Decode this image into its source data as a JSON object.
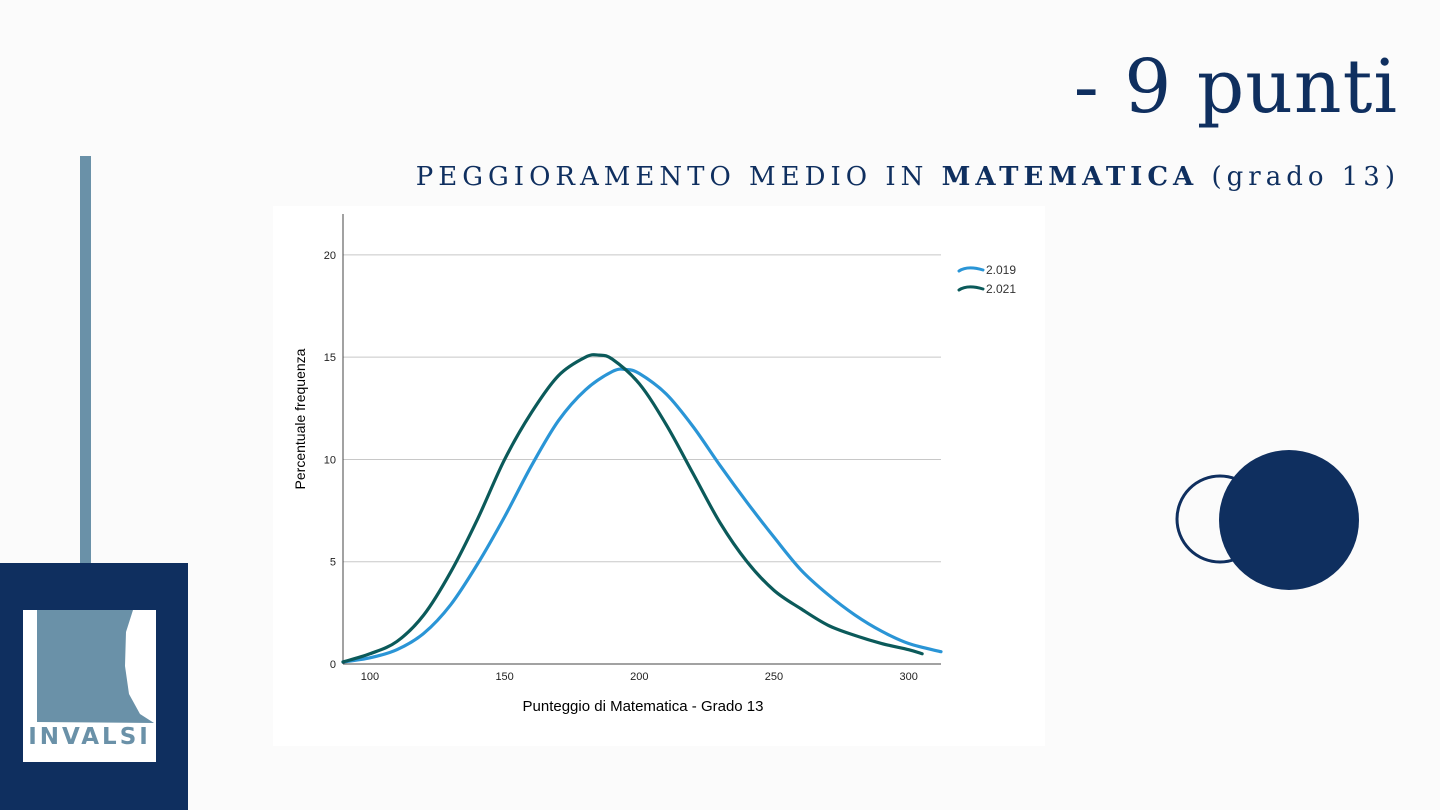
{
  "slide": {
    "headline": "- 9 punti",
    "subtitle_prefix": "PEGGIORAMENTO MEDIO IN ",
    "subtitle_bold": "MATEMATICA",
    "subtitle_suffix": " (grado 13)"
  },
  "logo": {
    "text": "INVALSI"
  },
  "colors": {
    "navy": "#0f2f5f",
    "steel_blue": "#6a91a8",
    "series_2019": "#2a95d6",
    "series_2021": "#0b5a5a"
  },
  "chart_data": {
    "type": "line",
    "title": "",
    "xlabel": "Punteggio di Matematica - Grado 13",
    "ylabel": "Percentuale frequenza",
    "xlim": [
      90,
      312
    ],
    "ylim": [
      0,
      22
    ],
    "x_ticks": [
      "100",
      "150",
      "200",
      "250",
      "300"
    ],
    "y_ticks": [
      "0",
      "5",
      "10",
      "15",
      "20"
    ],
    "grid": true,
    "legend_position": "top-right",
    "series": [
      {
        "name": "2.019",
        "color": "#2a95d6",
        "x": [
          90,
          100,
          110,
          120,
          130,
          140,
          150,
          160,
          170,
          180,
          190,
          195,
          200,
          210,
          220,
          230,
          240,
          250,
          260,
          270,
          280,
          290,
          300,
          312
        ],
        "y": [
          0.1,
          0.3,
          0.7,
          1.5,
          2.9,
          4.9,
          7.2,
          9.7,
          11.9,
          13.4,
          14.3,
          14.4,
          14.2,
          13.2,
          11.6,
          9.7,
          7.9,
          6.2,
          4.6,
          3.4,
          2.4,
          1.6,
          1.0,
          0.6
        ]
      },
      {
        "name": "2.021",
        "color": "#0b5a5a",
        "x": [
          90,
          100,
          110,
          120,
          130,
          140,
          150,
          160,
          170,
          180,
          185,
          190,
          200,
          210,
          220,
          230,
          240,
          250,
          260,
          270,
          280,
          290,
          300,
          305
        ],
        "y": [
          0.1,
          0.5,
          1.1,
          2.4,
          4.5,
          7.1,
          10.0,
          12.3,
          14.1,
          15.0,
          15.1,
          14.9,
          13.7,
          11.7,
          9.3,
          6.9,
          5.0,
          3.6,
          2.7,
          1.9,
          1.4,
          1.0,
          0.7,
          0.5
        ]
      }
    ]
  }
}
